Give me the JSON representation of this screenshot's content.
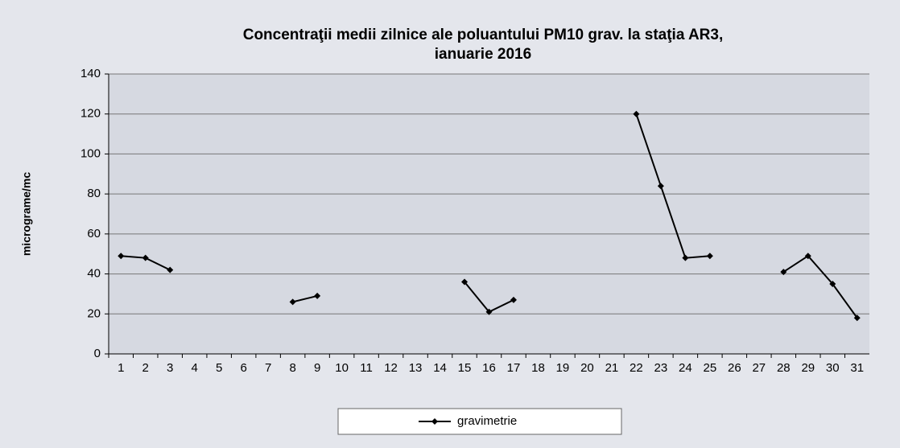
{
  "chart_data": {
    "type": "line",
    "title": [
      "Concentraţii medii zilnice ale poluantului  PM10 grav. la staţia AR3,",
      "ianuarie 2016"
    ],
    "y_label": "micrograme/mc",
    "categories": [
      1,
      2,
      3,
      4,
      5,
      6,
      7,
      8,
      9,
      10,
      11,
      12,
      13,
      14,
      15,
      16,
      17,
      18,
      19,
      20,
      21,
      22,
      23,
      24,
      25,
      26,
      27,
      28,
      29,
      30,
      31
    ],
    "series": [
      {
        "name": "gravimetrie",
        "color": "#000000",
        "values": [
          49,
          48,
          42,
          null,
          null,
          null,
          null,
          26,
          29,
          null,
          null,
          null,
          null,
          null,
          36,
          21,
          27,
          null,
          null,
          null,
          null,
          120,
          84,
          48,
          49,
          null,
          null,
          41,
          49,
          35,
          18
        ]
      }
    ],
    "ylim": [
      0,
      140
    ],
    "yticks": [
      0,
      20,
      40,
      60,
      80,
      100,
      120,
      140
    ],
    "grid": true,
    "legend": "bottom"
  }
}
